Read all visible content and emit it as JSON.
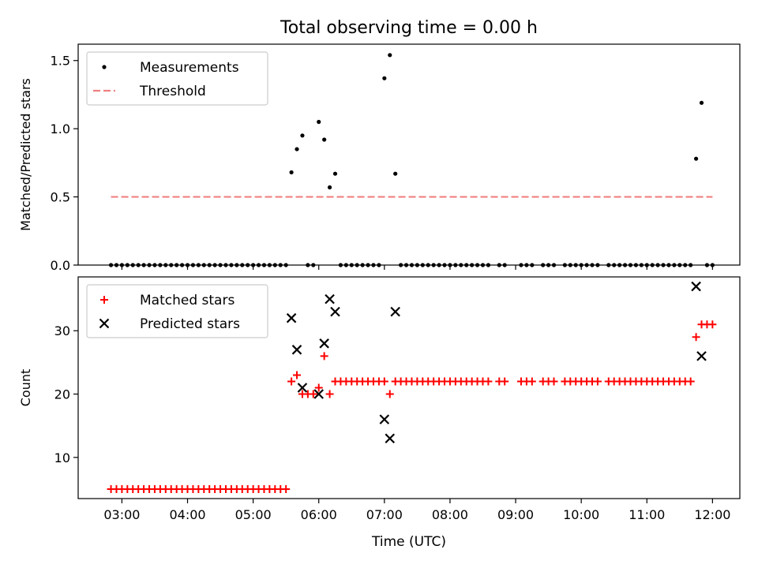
{
  "title": "Total observing time = 0.00 h",
  "colors": {
    "measurement": "#000000",
    "threshold": "#f08080",
    "matched": "#ff0000",
    "predicted": "#000000"
  },
  "chart_data": [
    {
      "type": "scatter",
      "panel": "top",
      "ylabel": "Matched/Predicted stars",
      "xlabel": "",
      "xlim": [
        "02:20",
        "12:25"
      ],
      "ylim": [
        0,
        1.62
      ],
      "yticks": [
        0.0,
        0.5,
        1.0,
        1.5
      ],
      "ytick_labels": [
        "0.0",
        "0.5",
        "1.0",
        "1.5"
      ],
      "legend_position": "upper-left",
      "series": [
        {
          "name": "Measurements",
          "kind": "points",
          "points": [
            [
              "02:50",
              0
            ],
            [
              "02:55",
              0
            ],
            [
              "03:00",
              0
            ],
            [
              "03:05",
              0
            ],
            [
              "03:10",
              0
            ],
            [
              "03:15",
              0
            ],
            [
              "03:20",
              0
            ],
            [
              "03:25",
              0
            ],
            [
              "03:30",
              0
            ],
            [
              "03:35",
              0
            ],
            [
              "03:40",
              0
            ],
            [
              "03:45",
              0
            ],
            [
              "03:50",
              0
            ],
            [
              "03:55",
              0
            ],
            [
              "04:00",
              0
            ],
            [
              "04:05",
              0
            ],
            [
              "04:10",
              0
            ],
            [
              "04:15",
              0
            ],
            [
              "04:20",
              0
            ],
            [
              "04:25",
              0
            ],
            [
              "04:30",
              0
            ],
            [
              "04:35",
              0
            ],
            [
              "04:40",
              0
            ],
            [
              "04:45",
              0
            ],
            [
              "04:50",
              0
            ],
            [
              "04:55",
              0
            ],
            [
              "05:00",
              0
            ],
            [
              "05:05",
              0
            ],
            [
              "05:10",
              0
            ],
            [
              "05:15",
              0
            ],
            [
              "05:20",
              0
            ],
            [
              "05:25",
              0
            ],
            [
              "05:30",
              0
            ],
            [
              "05:35",
              0.68
            ],
            [
              "05:40",
              0.85
            ],
            [
              "05:45",
              0.95
            ],
            [
              "05:50",
              0
            ],
            [
              "05:55",
              0
            ],
            [
              "06:00",
              1.05
            ],
            [
              "06:05",
              0.92
            ],
            [
              "06:10",
              0.57
            ],
            [
              "06:15",
              0.67
            ],
            [
              "06:20",
              0
            ],
            [
              "06:25",
              0
            ],
            [
              "06:30",
              0
            ],
            [
              "06:35",
              0
            ],
            [
              "06:40",
              0
            ],
            [
              "06:45",
              0
            ],
            [
              "06:50",
              0
            ],
            [
              "06:55",
              0
            ],
            [
              "07:00",
              1.37
            ],
            [
              "07:05",
              1.54
            ],
            [
              "07:10",
              0.67
            ],
            [
              "07:15",
              0
            ],
            [
              "07:20",
              0
            ],
            [
              "07:25",
              0
            ],
            [
              "07:30",
              0
            ],
            [
              "07:35",
              0
            ],
            [
              "07:40",
              0
            ],
            [
              "07:45",
              0
            ],
            [
              "07:50",
              0
            ],
            [
              "07:55",
              0
            ],
            [
              "08:00",
              0
            ],
            [
              "08:05",
              0
            ],
            [
              "08:10",
              0
            ],
            [
              "08:15",
              0
            ],
            [
              "08:20",
              0
            ],
            [
              "08:25",
              0
            ],
            [
              "08:30",
              0
            ],
            [
              "08:35",
              0
            ],
            [
              "08:45",
              0
            ],
            [
              "08:50",
              0
            ],
            [
              "09:05",
              0
            ],
            [
              "09:10",
              0
            ],
            [
              "09:15",
              0
            ],
            [
              "09:25",
              0
            ],
            [
              "09:30",
              0
            ],
            [
              "09:35",
              0
            ],
            [
              "09:45",
              0
            ],
            [
              "09:50",
              0
            ],
            [
              "09:55",
              0
            ],
            [
              "10:00",
              0
            ],
            [
              "10:05",
              0
            ],
            [
              "10:10",
              0
            ],
            [
              "10:15",
              0
            ],
            [
              "10:25",
              0
            ],
            [
              "10:30",
              0
            ],
            [
              "10:35",
              0
            ],
            [
              "10:40",
              0
            ],
            [
              "10:45",
              0
            ],
            [
              "10:50",
              0
            ],
            [
              "10:55",
              0
            ],
            [
              "11:00",
              0
            ],
            [
              "11:05",
              0
            ],
            [
              "11:10",
              0
            ],
            [
              "11:15",
              0
            ],
            [
              "11:20",
              0
            ],
            [
              "11:25",
              0
            ],
            [
              "11:30",
              0
            ],
            [
              "11:35",
              0
            ],
            [
              "11:40",
              0
            ],
            [
              "11:45",
              0.78
            ],
            [
              "11:50",
              1.19
            ],
            [
              "11:55",
              0
            ],
            [
              "12:00",
              0
            ]
          ]
        },
        {
          "name": "Threshold",
          "kind": "dashed-line",
          "points": [
            [
              "02:50",
              0.5
            ],
            [
              "12:00",
              0.5
            ]
          ]
        }
      ]
    },
    {
      "type": "scatter",
      "panel": "bottom",
      "ylabel": "Count",
      "xlabel": "Time (UTC)",
      "xlim": [
        "02:20",
        "12:25"
      ],
      "ylim": [
        3.5,
        38.5
      ],
      "yticks": [
        10,
        20,
        30
      ],
      "ytick_labels": [
        "10",
        "20",
        "30"
      ],
      "xticks": [
        "03:00",
        "04:00",
        "05:00",
        "06:00",
        "07:00",
        "08:00",
        "09:00",
        "10:00",
        "11:00",
        "12:00"
      ],
      "xtick_labels": [
        "03:00",
        "04:00",
        "05:00",
        "06:00",
        "07:00",
        "08:00",
        "09:00",
        "10:00",
        "11:00",
        "12:00"
      ],
      "legend_position": "upper-left",
      "series": [
        {
          "name": "Matched stars",
          "kind": "plus",
          "points": [
            [
              "02:50",
              5
            ],
            [
              "02:55",
              5
            ],
            [
              "03:00",
              5
            ],
            [
              "03:05",
              5
            ],
            [
              "03:10",
              5
            ],
            [
              "03:15",
              5
            ],
            [
              "03:20",
              5
            ],
            [
              "03:25",
              5
            ],
            [
              "03:30",
              5
            ],
            [
              "03:35",
              5
            ],
            [
              "03:40",
              5
            ],
            [
              "03:45",
              5
            ],
            [
              "03:50",
              5
            ],
            [
              "03:55",
              5
            ],
            [
              "04:00",
              5
            ],
            [
              "04:05",
              5
            ],
            [
              "04:10",
              5
            ],
            [
              "04:15",
              5
            ],
            [
              "04:20",
              5
            ],
            [
              "04:25",
              5
            ],
            [
              "04:30",
              5
            ],
            [
              "04:35",
              5
            ],
            [
              "04:40",
              5
            ],
            [
              "04:45",
              5
            ],
            [
              "04:50",
              5
            ],
            [
              "04:55",
              5
            ],
            [
              "05:00",
              5
            ],
            [
              "05:05",
              5
            ],
            [
              "05:10",
              5
            ],
            [
              "05:15",
              5
            ],
            [
              "05:20",
              5
            ],
            [
              "05:25",
              5
            ],
            [
              "05:30",
              5
            ],
            [
              "05:35",
              22
            ],
            [
              "05:40",
              23
            ],
            [
              "05:45",
              20
            ],
            [
              "05:50",
              20
            ],
            [
              "05:55",
              20
            ],
            [
              "06:00",
              21
            ],
            [
              "06:05",
              26
            ],
            [
              "06:10",
              20
            ],
            [
              "06:15",
              22
            ],
            [
              "06:20",
              22
            ],
            [
              "06:25",
              22
            ],
            [
              "06:30",
              22
            ],
            [
              "06:35",
              22
            ],
            [
              "06:40",
              22
            ],
            [
              "06:45",
              22
            ],
            [
              "06:50",
              22
            ],
            [
              "06:55",
              22
            ],
            [
              "07:00",
              22
            ],
            [
              "07:05",
              20
            ],
            [
              "07:10",
              22
            ],
            [
              "07:15",
              22
            ],
            [
              "07:20",
              22
            ],
            [
              "07:25",
              22
            ],
            [
              "07:30",
              22
            ],
            [
              "07:35",
              22
            ],
            [
              "07:40",
              22
            ],
            [
              "07:45",
              22
            ],
            [
              "07:50",
              22
            ],
            [
              "07:55",
              22
            ],
            [
              "08:00",
              22
            ],
            [
              "08:05",
              22
            ],
            [
              "08:10",
              22
            ],
            [
              "08:15",
              22
            ],
            [
              "08:20",
              22
            ],
            [
              "08:25",
              22
            ],
            [
              "08:30",
              22
            ],
            [
              "08:35",
              22
            ],
            [
              "08:45",
              22
            ],
            [
              "08:50",
              22
            ],
            [
              "09:05",
              22
            ],
            [
              "09:10",
              22
            ],
            [
              "09:15",
              22
            ],
            [
              "09:25",
              22
            ],
            [
              "09:30",
              22
            ],
            [
              "09:35",
              22
            ],
            [
              "09:45",
              22
            ],
            [
              "09:50",
              22
            ],
            [
              "09:55",
              22
            ],
            [
              "10:00",
              22
            ],
            [
              "10:05",
              22
            ],
            [
              "10:10",
              22
            ],
            [
              "10:15",
              22
            ],
            [
              "10:25",
              22
            ],
            [
              "10:30",
              22
            ],
            [
              "10:35",
              22
            ],
            [
              "10:40",
              22
            ],
            [
              "10:45",
              22
            ],
            [
              "10:50",
              22
            ],
            [
              "10:55",
              22
            ],
            [
              "11:00",
              22
            ],
            [
              "11:05",
              22
            ],
            [
              "11:10",
              22
            ],
            [
              "11:15",
              22
            ],
            [
              "11:20",
              22
            ],
            [
              "11:25",
              22
            ],
            [
              "11:30",
              22
            ],
            [
              "11:35",
              22
            ],
            [
              "11:40",
              22
            ],
            [
              "11:45",
              29
            ],
            [
              "11:50",
              31
            ],
            [
              "11:55",
              31
            ],
            [
              "12:00",
              31
            ]
          ]
        },
        {
          "name": "Predicted stars",
          "kind": "cross",
          "points": [
            [
              "05:35",
              32
            ],
            [
              "05:40",
              27
            ],
            [
              "05:45",
              21
            ],
            [
              "06:00",
              20
            ],
            [
              "06:05",
              28
            ],
            [
              "06:10",
              35
            ],
            [
              "06:15",
              33
            ],
            [
              "07:00",
              16
            ],
            [
              "07:05",
              13
            ],
            [
              "07:10",
              33
            ],
            [
              "11:45",
              37
            ],
            [
              "11:50",
              26
            ]
          ]
        }
      ]
    }
  ]
}
